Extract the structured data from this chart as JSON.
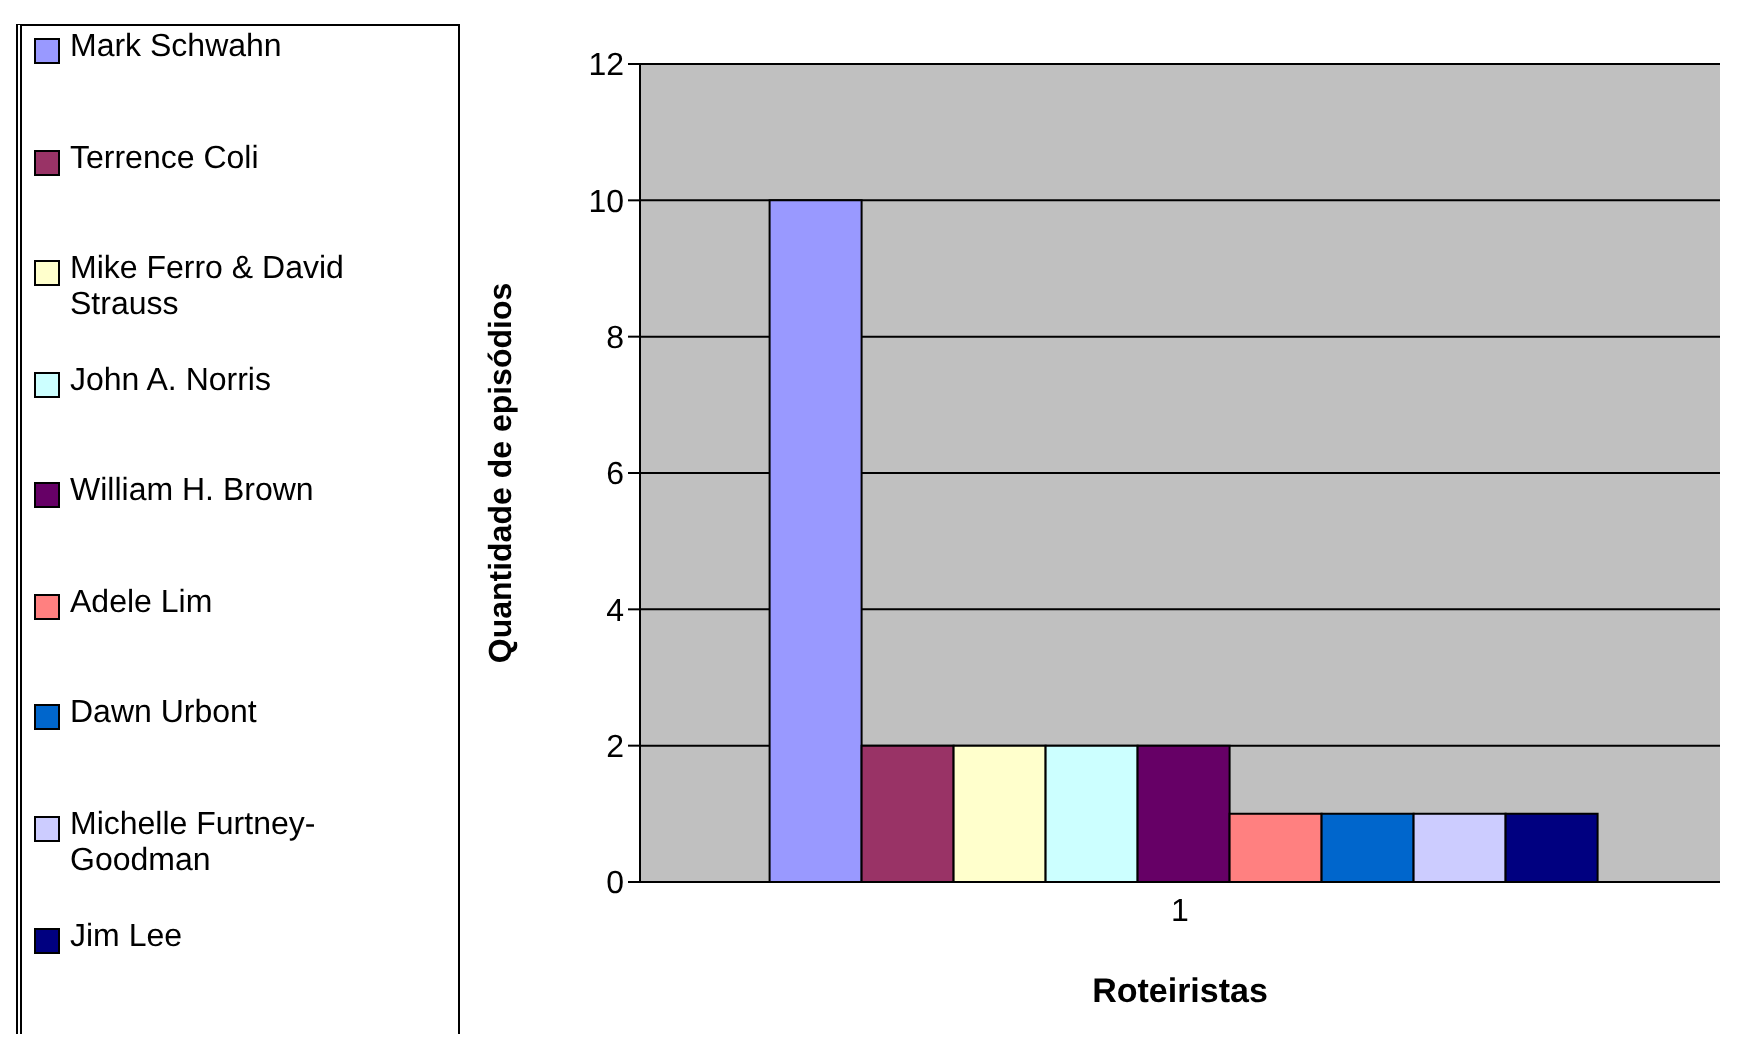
{
  "chart_data": {
    "type": "bar",
    "xlabel": "Roteiristas",
    "ylabel": "Quantidade de episódios",
    "categories": [
      "1"
    ],
    "series": [
      {
        "name": "Mark Schwahn",
        "color": "#9999ff",
        "values": [
          10
        ]
      },
      {
        "name": "Terrence Coli",
        "color": "#993366",
        "values": [
          2
        ]
      },
      {
        "name": "Mike Ferro & David Strauss",
        "color": "#ffffcc",
        "values": [
          2
        ]
      },
      {
        "name": "John A. Norris",
        "color": "#ccffff",
        "values": [
          2
        ]
      },
      {
        "name": "William H. Brown",
        "color": "#660066",
        "values": [
          2
        ]
      },
      {
        "name": "Adele Lim",
        "color": "#ff8080",
        "values": [
          1
        ]
      },
      {
        "name": "Dawn Urbont",
        "color": "#0066cc",
        "values": [
          1
        ]
      },
      {
        "name": "Michelle Furtney-Goodman",
        "color": "#ccccff",
        "values": [
          1
        ]
      },
      {
        "name": "Jim Lee",
        "color": "#000080",
        "values": [
          1
        ]
      }
    ],
    "ylim": [
      0,
      12
    ],
    "yticks": [
      0,
      2,
      4,
      6,
      8,
      10,
      12
    ],
    "grid": "y",
    "legend": "left"
  }
}
